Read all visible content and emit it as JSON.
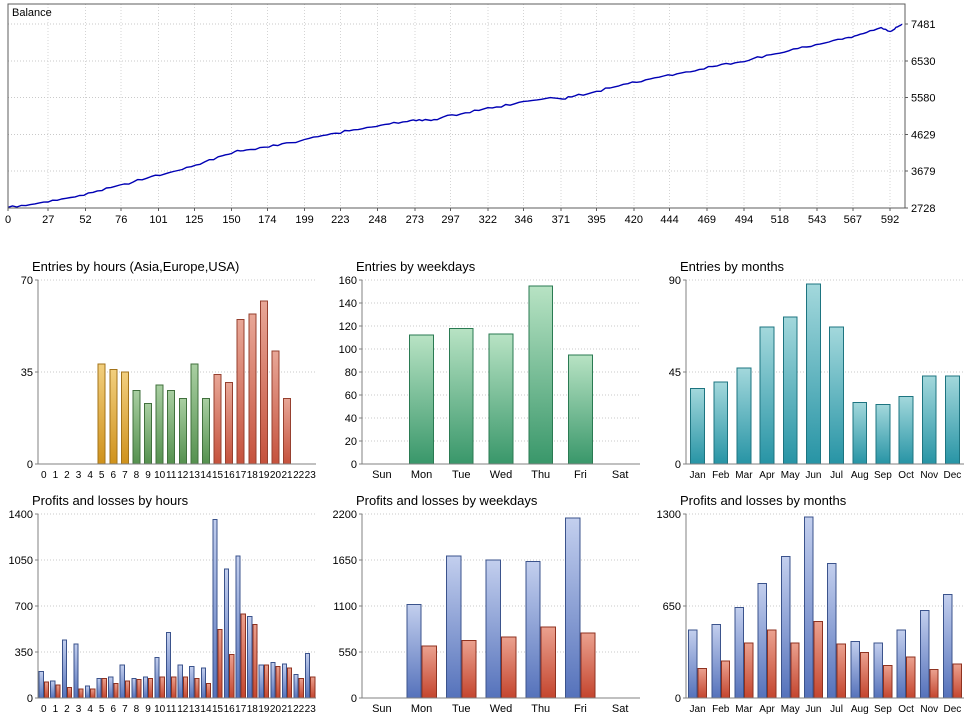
{
  "palettes": {
    "asia": {
      "top": "#f2cf7e",
      "bottom": "#cf921c",
      "border": "#a3731a"
    },
    "europe": {
      "top": "#a9cfa2",
      "bottom": "#55914f",
      "border": "#41703d"
    },
    "usa": {
      "top": "#e8a797",
      "bottom": "#c5523d",
      "border": "#96402f"
    },
    "green": {
      "top": "#b8e3c4",
      "bottom": "#39976a",
      "border": "#2a7a52"
    },
    "teal": {
      "top": "#a3d8dc",
      "bottom": "#2794a5",
      "border": "#1d7480"
    },
    "blue": {
      "top": "#c3cfee",
      "bottom": "#5572bb",
      "border": "#3b538c"
    },
    "loss": {
      "top": "#eba18f",
      "bottom": "#c4452e",
      "border": "#8f3220"
    }
  },
  "chart_data": [
    {
      "type": "line",
      "title": "Balance",
      "line_color": "#0000b4",
      "xlim": [
        0,
        602
      ],
      "ylim": [
        2728,
        8000
      ],
      "x_ticks": [
        0,
        27,
        52,
        76,
        101,
        125,
        150,
        174,
        199,
        223,
        248,
        273,
        297,
        322,
        346,
        371,
        395,
        420,
        444,
        469,
        494,
        518,
        543,
        567,
        592
      ],
      "y_ticks": [
        2728,
        3679,
        4629,
        5580,
        6530,
        7481
      ],
      "y_label_side": "right",
      "points": [
        [
          0,
          2745
        ],
        [
          12,
          2790
        ],
        [
          24,
          2880
        ],
        [
          36,
          2960
        ],
        [
          48,
          3050
        ],
        [
          60,
          3170
        ],
        [
          72,
          3290
        ],
        [
          84,
          3400
        ],
        [
          96,
          3540
        ],
        [
          108,
          3640
        ],
        [
          120,
          3780
        ],
        [
          132,
          3920
        ],
        [
          144,
          4080
        ],
        [
          152,
          4180
        ],
        [
          160,
          4230
        ],
        [
          172,
          4300
        ],
        [
          184,
          4390
        ],
        [
          196,
          4460
        ],
        [
          208,
          4570
        ],
        [
          220,
          4660
        ],
        [
          232,
          4750
        ],
        [
          244,
          4820
        ],
        [
          256,
          4900
        ],
        [
          268,
          4960
        ],
        [
          276,
          5010
        ],
        [
          284,
          4990
        ],
        [
          292,
          5080
        ],
        [
          304,
          5160
        ],
        [
          316,
          5250
        ],
        [
          328,
          5340
        ],
        [
          340,
          5420
        ],
        [
          352,
          5510
        ],
        [
          364,
          5580
        ],
        [
          372,
          5545
        ],
        [
          380,
          5620
        ],
        [
          392,
          5710
        ],
        [
          404,
          5830
        ],
        [
          416,
          5940
        ],
        [
          428,
          6040
        ],
        [
          440,
          6140
        ],
        [
          452,
          6220
        ],
        [
          464,
          6310
        ],
        [
          476,
          6400
        ],
        [
          488,
          6480
        ],
        [
          500,
          6590
        ],
        [
          512,
          6690
        ],
        [
          524,
          6790
        ],
        [
          536,
          6890
        ],
        [
          548,
          6990
        ],
        [
          560,
          7090
        ],
        [
          568,
          7170
        ],
        [
          576,
          7260
        ],
        [
          586,
          7390
        ],
        [
          592,
          7290
        ],
        [
          596,
          7400
        ],
        [
          600,
          7481
        ]
      ]
    },
    {
      "type": "bar",
      "title": "Entries by hours (Asia,Europe,USA)",
      "categories": [
        "0",
        "1",
        "2",
        "3",
        "4",
        "5",
        "6",
        "7",
        "8",
        "9",
        "10",
        "11",
        "12",
        "13",
        "14",
        "15",
        "16",
        "17",
        "18",
        "19",
        "20",
        "21",
        "22",
        "23"
      ],
      "values": [
        0,
        0,
        0,
        0,
        0,
        38,
        36,
        35,
        28,
        23,
        30,
        28,
        25,
        38,
        25,
        34,
        31,
        55,
        57,
        62,
        43,
        25,
        0,
        0
      ],
      "colors": [
        "",
        "",
        "",
        "",
        "",
        "asia",
        "asia",
        "asia",
        "europe",
        "europe",
        "europe",
        "europe",
        "europe",
        "europe",
        "europe",
        "usa",
        "usa",
        "usa",
        "usa",
        "usa",
        "usa",
        "usa",
        "",
        ""
      ],
      "y_ticks": [
        0,
        35,
        70
      ],
      "ylim": [
        0,
        70
      ],
      "x_font": 10
    },
    {
      "type": "bar",
      "title": "Entries by weekdays",
      "categories": [
        "Sun",
        "Mon",
        "Tue",
        "Wed",
        "Thu",
        "Fri",
        "Sat"
      ],
      "values": [
        0,
        112,
        118,
        113,
        155,
        95,
        0
      ],
      "color": "green",
      "y_ticks": [
        0,
        20,
        40,
        60,
        80,
        100,
        120,
        140,
        160
      ],
      "ylim": [
        0,
        160
      ],
      "x_font": 11
    },
    {
      "type": "bar",
      "title": "Entries by months",
      "categories": [
        "Jan",
        "Feb",
        "Mar",
        "Apr",
        "May",
        "Jun",
        "Jul",
        "Aug",
        "Sep",
        "Oct",
        "Nov",
        "Dec"
      ],
      "values": [
        37,
        40,
        47,
        67,
        72,
        88,
        67,
        30,
        29,
        33,
        43,
        43
      ],
      "color": "teal",
      "y_ticks": [
        0,
        45,
        90
      ],
      "ylim": [
        0,
        90
      ],
      "x_font": 10
    },
    {
      "type": "paired",
      "title": "Profits and losses by hours",
      "categories": [
        "0",
        "1",
        "2",
        "3",
        "4",
        "5",
        "6",
        "7",
        "8",
        "9",
        "10",
        "11",
        "12",
        "13",
        "14",
        "15",
        "16",
        "17",
        "18",
        "19",
        "20",
        "21",
        "22",
        "23"
      ],
      "series": [
        {
          "name": "profits",
          "color": "blue",
          "values": [
            200,
            130,
            440,
            410,
            90,
            150,
            160,
            250,
            150,
            160,
            310,
            500,
            250,
            240,
            230,
            1360,
            980,
            1080,
            620,
            250,
            270,
            260,
            180,
            340
          ]
        },
        {
          "name": "losses",
          "color": "loss",
          "values": [
            120,
            100,
            80,
            70,
            70,
            150,
            110,
            130,
            140,
            150,
            160,
            160,
            160,
            150,
            110,
            520,
            330,
            640,
            560,
            250,
            240,
            230,
            150,
            160
          ]
        }
      ],
      "y_ticks": [
        0,
        350,
        700,
        1050,
        1400
      ],
      "ylim": [
        0,
        1400
      ],
      "x_font": 10
    },
    {
      "type": "paired",
      "title": "Profits and losses by weekdays",
      "categories": [
        "Sun",
        "Mon",
        "Tue",
        "Wed",
        "Thu",
        "Fri",
        "Sat"
      ],
      "series": [
        {
          "name": "profits",
          "color": "blue",
          "values": [
            0,
            1120,
            1700,
            1650,
            1630,
            2150,
            0
          ]
        },
        {
          "name": "losses",
          "color": "loss",
          "values": [
            0,
            620,
            690,
            730,
            850,
            780,
            0
          ]
        }
      ],
      "y_ticks": [
        0,
        550,
        1100,
        1650,
        2200
      ],
      "ylim": [
        0,
        2200
      ],
      "x_font": 11
    },
    {
      "type": "paired",
      "title": "Profits and losses by months",
      "categories": [
        "Jan",
        "Feb",
        "Mar",
        "Apr",
        "May",
        "Jun",
        "Jul",
        "Aug",
        "Sep",
        "Oct",
        "Nov",
        "Dec"
      ],
      "series": [
        {
          "name": "profits",
          "color": "blue",
          "values": [
            480,
            520,
            640,
            810,
            1000,
            1280,
            950,
            400,
            390,
            480,
            620,
            730
          ]
        },
        {
          "name": "losses",
          "color": "loss",
          "values": [
            210,
            260,
            390,
            480,
            390,
            540,
            380,
            320,
            230,
            290,
            200,
            240
          ]
        }
      ],
      "y_ticks": [
        0,
        650,
        1300
      ],
      "ylim": [
        0,
        1300
      ],
      "x_font": 10
    }
  ]
}
